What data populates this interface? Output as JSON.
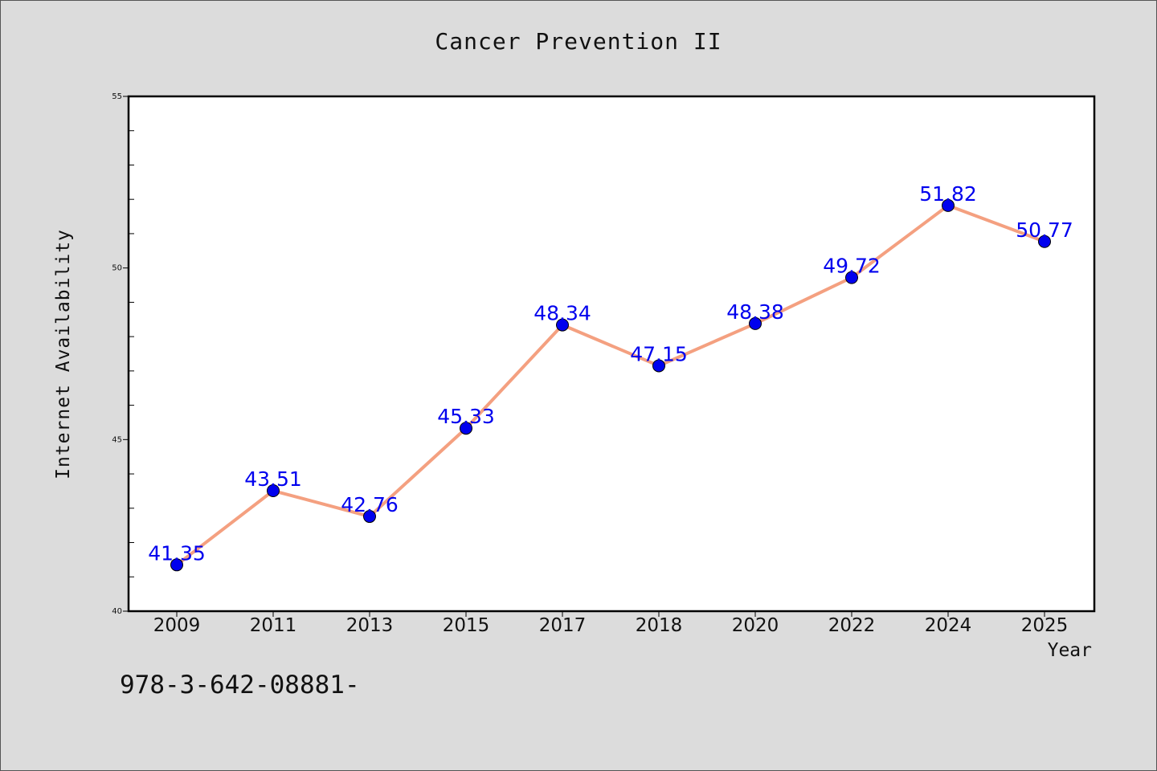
{
  "chart_data": {
    "type": "line",
    "title": "Cancer Prevention II",
    "xlabel": "Year",
    "ylabel": "Internet Availability",
    "categories": [
      "2009",
      "2011",
      "2013",
      "2015",
      "2017",
      "2018",
      "2020",
      "2022",
      "2024",
      "2025"
    ],
    "series": [
      {
        "values": [
          41.35,
          43.51,
          42.76,
          45.33,
          48.34,
          47.15,
          48.38,
          49.72,
          51.82,
          50.77
        ],
        "line_color": "#f4a080",
        "marker_color": "#0000ee"
      }
    ],
    "data_labels": [
      "41.35",
      "43.51",
      "42.76",
      "45.33",
      "48.34",
      "47.15",
      "48.38",
      "49.72",
      "51.82",
      "50.77"
    ],
    "ylim": [
      40,
      55
    ],
    "yticks": [
      40,
      45,
      50,
      55
    ],
    "y_minor_step": 1,
    "grid": false,
    "legend": "none"
  },
  "footnote": "978-3-642-08881-"
}
